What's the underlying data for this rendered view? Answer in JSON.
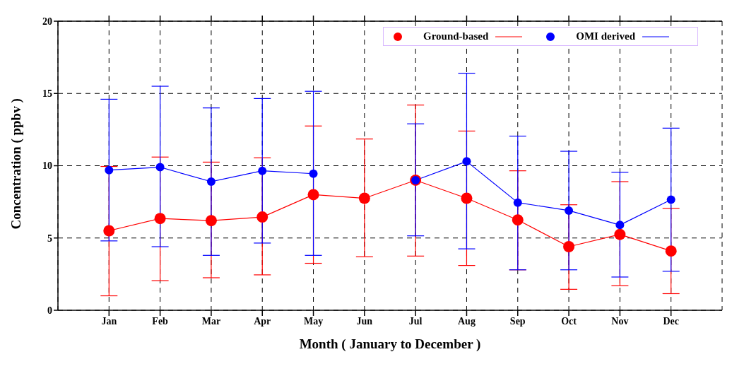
{
  "chart_data": {
    "type": "line",
    "xlabel": "Month ( January to December )",
    "ylabel": "Concentration ( ppbv )",
    "categories": [
      "Jan",
      "Feb",
      "Mar",
      "Apr",
      "May",
      "Jun",
      "Jul",
      "Aug",
      "Sep",
      "Oct",
      "Nov",
      "Dec"
    ],
    "series": [
      {
        "name": "Ground-based",
        "color": "#ff0000",
        "values": [
          5.5,
          6.35,
          6.2,
          6.45,
          8.0,
          7.75,
          9.0,
          7.75,
          6.25,
          4.4,
          5.25,
          4.1
        ],
        "errors": [
          [
            1.0,
            9.95
          ],
          [
            2.05,
            10.6
          ],
          [
            2.25,
            10.25
          ],
          [
            2.45,
            10.55
          ],
          [
            3.25,
            12.75
          ],
          [
            3.7,
            11.85
          ],
          [
            3.75,
            14.2
          ],
          [
            3.1,
            12.4
          ],
          [
            2.8,
            9.65
          ],
          [
            1.45,
            7.3
          ],
          [
            1.7,
            8.9
          ],
          [
            1.15,
            7.05
          ]
        ]
      },
      {
        "name": "OMI derived",
        "color": "#0000ff",
        "values": [
          9.7,
          9.9,
          8.9,
          9.65,
          9.45,
          null,
          9.0,
          10.3,
          7.45,
          6.9,
          5.9,
          7.65
        ],
        "errors": [
          [
            4.8,
            14.6
          ],
          [
            4.4,
            15.5
          ],
          [
            3.8,
            14.0
          ],
          [
            4.65,
            14.65
          ],
          [
            3.8,
            15.15
          ],
          null,
          [
            5.15,
            12.9
          ],
          [
            4.25,
            16.4
          ],
          [
            2.8,
            12.05
          ],
          [
            2.8,
            11.0
          ],
          [
            2.3,
            9.55
          ],
          [
            2.7,
            12.6
          ]
        ]
      }
    ],
    "ylim": [
      0,
      20
    ],
    "yticks": [
      0,
      5,
      10,
      15,
      20
    ],
    "grid": true,
    "legend": "top right",
    "marker": "circle",
    "line_style": "solid"
  }
}
